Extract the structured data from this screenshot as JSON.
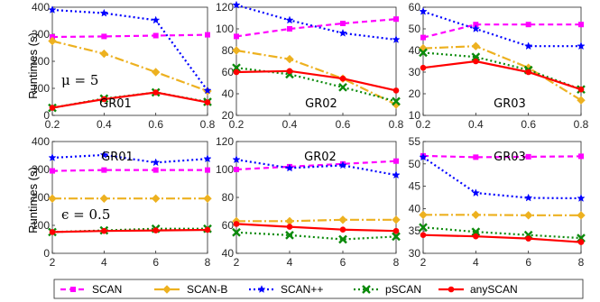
{
  "figure": {
    "ylabel": "Runtimes (s)",
    "legend": [
      {
        "name": "SCAN",
        "color": "#ff00ff",
        "dash": "6,4",
        "marker": "square"
      },
      {
        "name": "SCAN-B",
        "color": "#edb120",
        "dash": "10,3,2,3",
        "marker": "diamond"
      },
      {
        "name": "SCAN++",
        "color": "#0000ff",
        "dash": "2,3",
        "marker": "star"
      },
      {
        "name": "pSCAN",
        "color": "#0b8a0b",
        "dash": "2,3",
        "marker": "x"
      },
      {
        "name": "anySCAN",
        "color": "#ff0000",
        "dash": "",
        "marker": "circle"
      }
    ]
  },
  "chart_data": [
    {
      "type": "line",
      "annotation": "GR01",
      "param_label": "μ = 5",
      "x": [
        0.2,
        0.4,
        0.6,
        0.8
      ],
      "xticks": [
        "0.2",
        "0.4",
        "0.6",
        "0.8"
      ],
      "ylim": [
        0,
        400
      ],
      "yticks": [
        0,
        100,
        200,
        300,
        400
      ],
      "series": [
        {
          "name": "SCAN",
          "values": [
            290,
            292,
            295,
            298
          ]
        },
        {
          "name": "SCAN-B",
          "values": [
            275,
            228,
            160,
            90
          ]
        },
        {
          "name": "SCAN++",
          "values": [
            390,
            378,
            352,
            92
          ]
        },
        {
          "name": "pSCAN",
          "values": [
            28,
            62,
            85,
            50
          ]
        },
        {
          "name": "anySCAN",
          "values": [
            28,
            60,
            85,
            48
          ]
        }
      ]
    },
    {
      "type": "line",
      "annotation": "GR02",
      "x": [
        0.2,
        0.4,
        0.6,
        0.8
      ],
      "xticks": [
        "0.2",
        "0.4",
        "0.6",
        "0.8"
      ],
      "ylim": [
        20,
        120
      ],
      "yticks": [
        20,
        40,
        60,
        80,
        100,
        120
      ],
      "series": [
        {
          "name": "SCAN",
          "values": [
            93,
            100,
            105,
            109
          ]
        },
        {
          "name": "SCAN-B",
          "values": [
            80,
            72,
            54,
            30
          ]
        },
        {
          "name": "SCAN++",
          "values": [
            122,
            108,
            96,
            90
          ]
        },
        {
          "name": "pSCAN",
          "values": [
            64,
            58,
            46,
            33
          ]
        },
        {
          "name": "anySCAN",
          "values": [
            60,
            61,
            54,
            43
          ]
        }
      ]
    },
    {
      "type": "line",
      "annotation": "GR03",
      "x": [
        0.2,
        0.4,
        0.6,
        0.8
      ],
      "xticks": [
        "0.2",
        "0.4",
        "0.6",
        "0.8"
      ],
      "ylim": [
        10,
        60
      ],
      "yticks": [
        10,
        20,
        30,
        40,
        50,
        60
      ],
      "series": [
        {
          "name": "SCAN",
          "values": [
            46,
            52,
            52,
            52
          ]
        },
        {
          "name": "SCAN-B",
          "values": [
            41,
            42,
            32,
            17
          ]
        },
        {
          "name": "SCAN++",
          "values": [
            58,
            50,
            42,
            42
          ]
        },
        {
          "name": "pSCAN",
          "values": [
            39,
            37,
            31,
            22
          ]
        },
        {
          "name": "anySCAN",
          "values": [
            32,
            35,
            30,
            22
          ]
        }
      ]
    },
    {
      "type": "line",
      "annotation": "GR01",
      "param_label": "ϵ = 0.5",
      "x": [
        2,
        4,
        6,
        8
      ],
      "xticks": [
        "2",
        "4",
        "6",
        "8"
      ],
      "ylim": [
        0,
        400
      ],
      "yticks": [
        0,
        100,
        200,
        300,
        400
      ],
      "series": [
        {
          "name": "SCAN",
          "values": [
            295,
            298,
            298,
            298
          ]
        },
        {
          "name": "SCAN-B",
          "values": [
            196,
            196,
            196,
            196
          ]
        },
        {
          "name": "SCAN++",
          "values": [
            342,
            352,
            325,
            338
          ]
        },
        {
          "name": "pSCAN",
          "values": [
            76,
            82,
            88,
            88
          ]
        },
        {
          "name": "anySCAN",
          "values": [
            76,
            80,
            82,
            84
          ]
        }
      ]
    },
    {
      "type": "line",
      "annotation": "GR02",
      "x": [
        2,
        4,
        6,
        8
      ],
      "xticks": [
        "2",
        "4",
        "6",
        "8"
      ],
      "ylim": [
        40,
        120
      ],
      "yticks": [
        40,
        60,
        80,
        100,
        120
      ],
      "series": [
        {
          "name": "SCAN",
          "values": [
            100,
            102,
            104,
            106
          ]
        },
        {
          "name": "SCAN-B",
          "values": [
            63,
            63,
            64,
            64
          ]
        },
        {
          "name": "SCAN++",
          "values": [
            107,
            101,
            103,
            96
          ]
        },
        {
          "name": "pSCAN",
          "values": [
            55,
            53,
            50,
            52
          ]
        },
        {
          "name": "anySCAN",
          "values": [
            61,
            59,
            57,
            56
          ]
        }
      ]
    },
    {
      "type": "line",
      "annotation": "GR03",
      "x": [
        2,
        4,
        6,
        8
      ],
      "xticks": [
        "2",
        "4",
        "6",
        "8"
      ],
      "ylim": [
        30,
        55
      ],
      "yticks": [
        30,
        35,
        40,
        45,
        50,
        55
      ],
      "series": [
        {
          "name": "SCAN",
          "values": [
            51.8,
            51.5,
            51.6,
            51.7
          ]
        },
        {
          "name": "SCAN-B",
          "values": [
            38.6,
            38.6,
            38.5,
            38.5
          ]
        },
        {
          "name": "SCAN++",
          "values": [
            51.5,
            43.5,
            42.4,
            42.3
          ]
        },
        {
          "name": "pSCAN",
          "values": [
            35.8,
            34.8,
            34.1,
            33.4
          ]
        },
        {
          "name": "anySCAN",
          "values": [
            34.1,
            33.8,
            33.3,
            32.5
          ]
        }
      ]
    }
  ]
}
